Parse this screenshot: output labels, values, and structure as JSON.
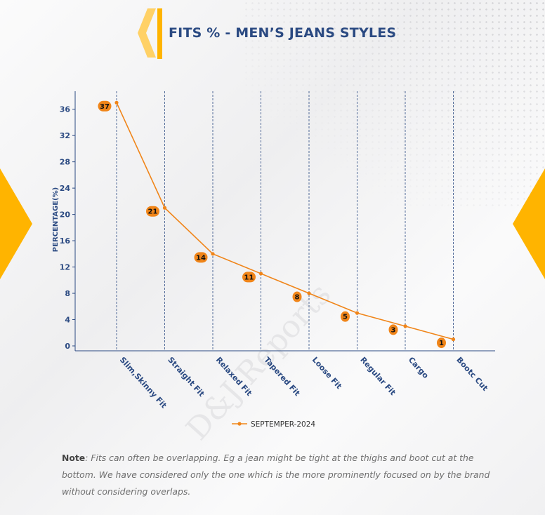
{
  "title": "FITS % - MEN’S JEANS STYLES",
  "note": {
    "label": "Note",
    "text": ": Fits can often be overlapping. Eg a jean might be tight at the thighs and boot cut at the bottom. We have considered only the one which is the more prominently focused on by the brand without considering overlaps."
  },
  "watermark": "D&J Reports",
  "colors": {
    "accent": "#ffb400",
    "title": "#2b4a82",
    "series": "#f08519",
    "axis": "#2b4a82"
  },
  "chart_data": {
    "type": "line",
    "xlabel": "",
    "ylabel": "PERCENTAGE(%)",
    "ylim": [
      0,
      37
    ],
    "yticks": [
      0,
      4,
      8,
      12,
      16,
      20,
      24,
      28,
      32,
      36
    ],
    "categories": [
      "Slim,Skinny Fit",
      "Straight Fit",
      "Relaxed Fit",
      "Tapered Fit",
      "Loose Fit",
      "Regular Fit",
      "Cargo",
      "Bootc Cut"
    ],
    "series": [
      {
        "name": "SEPTEMPER-2024",
        "values": [
          37,
          21,
          14,
          11,
          8,
          5,
          3,
          1
        ]
      }
    ],
    "grid": "vertical dashed lines at categories",
    "legend_position": "bottom-center"
  }
}
